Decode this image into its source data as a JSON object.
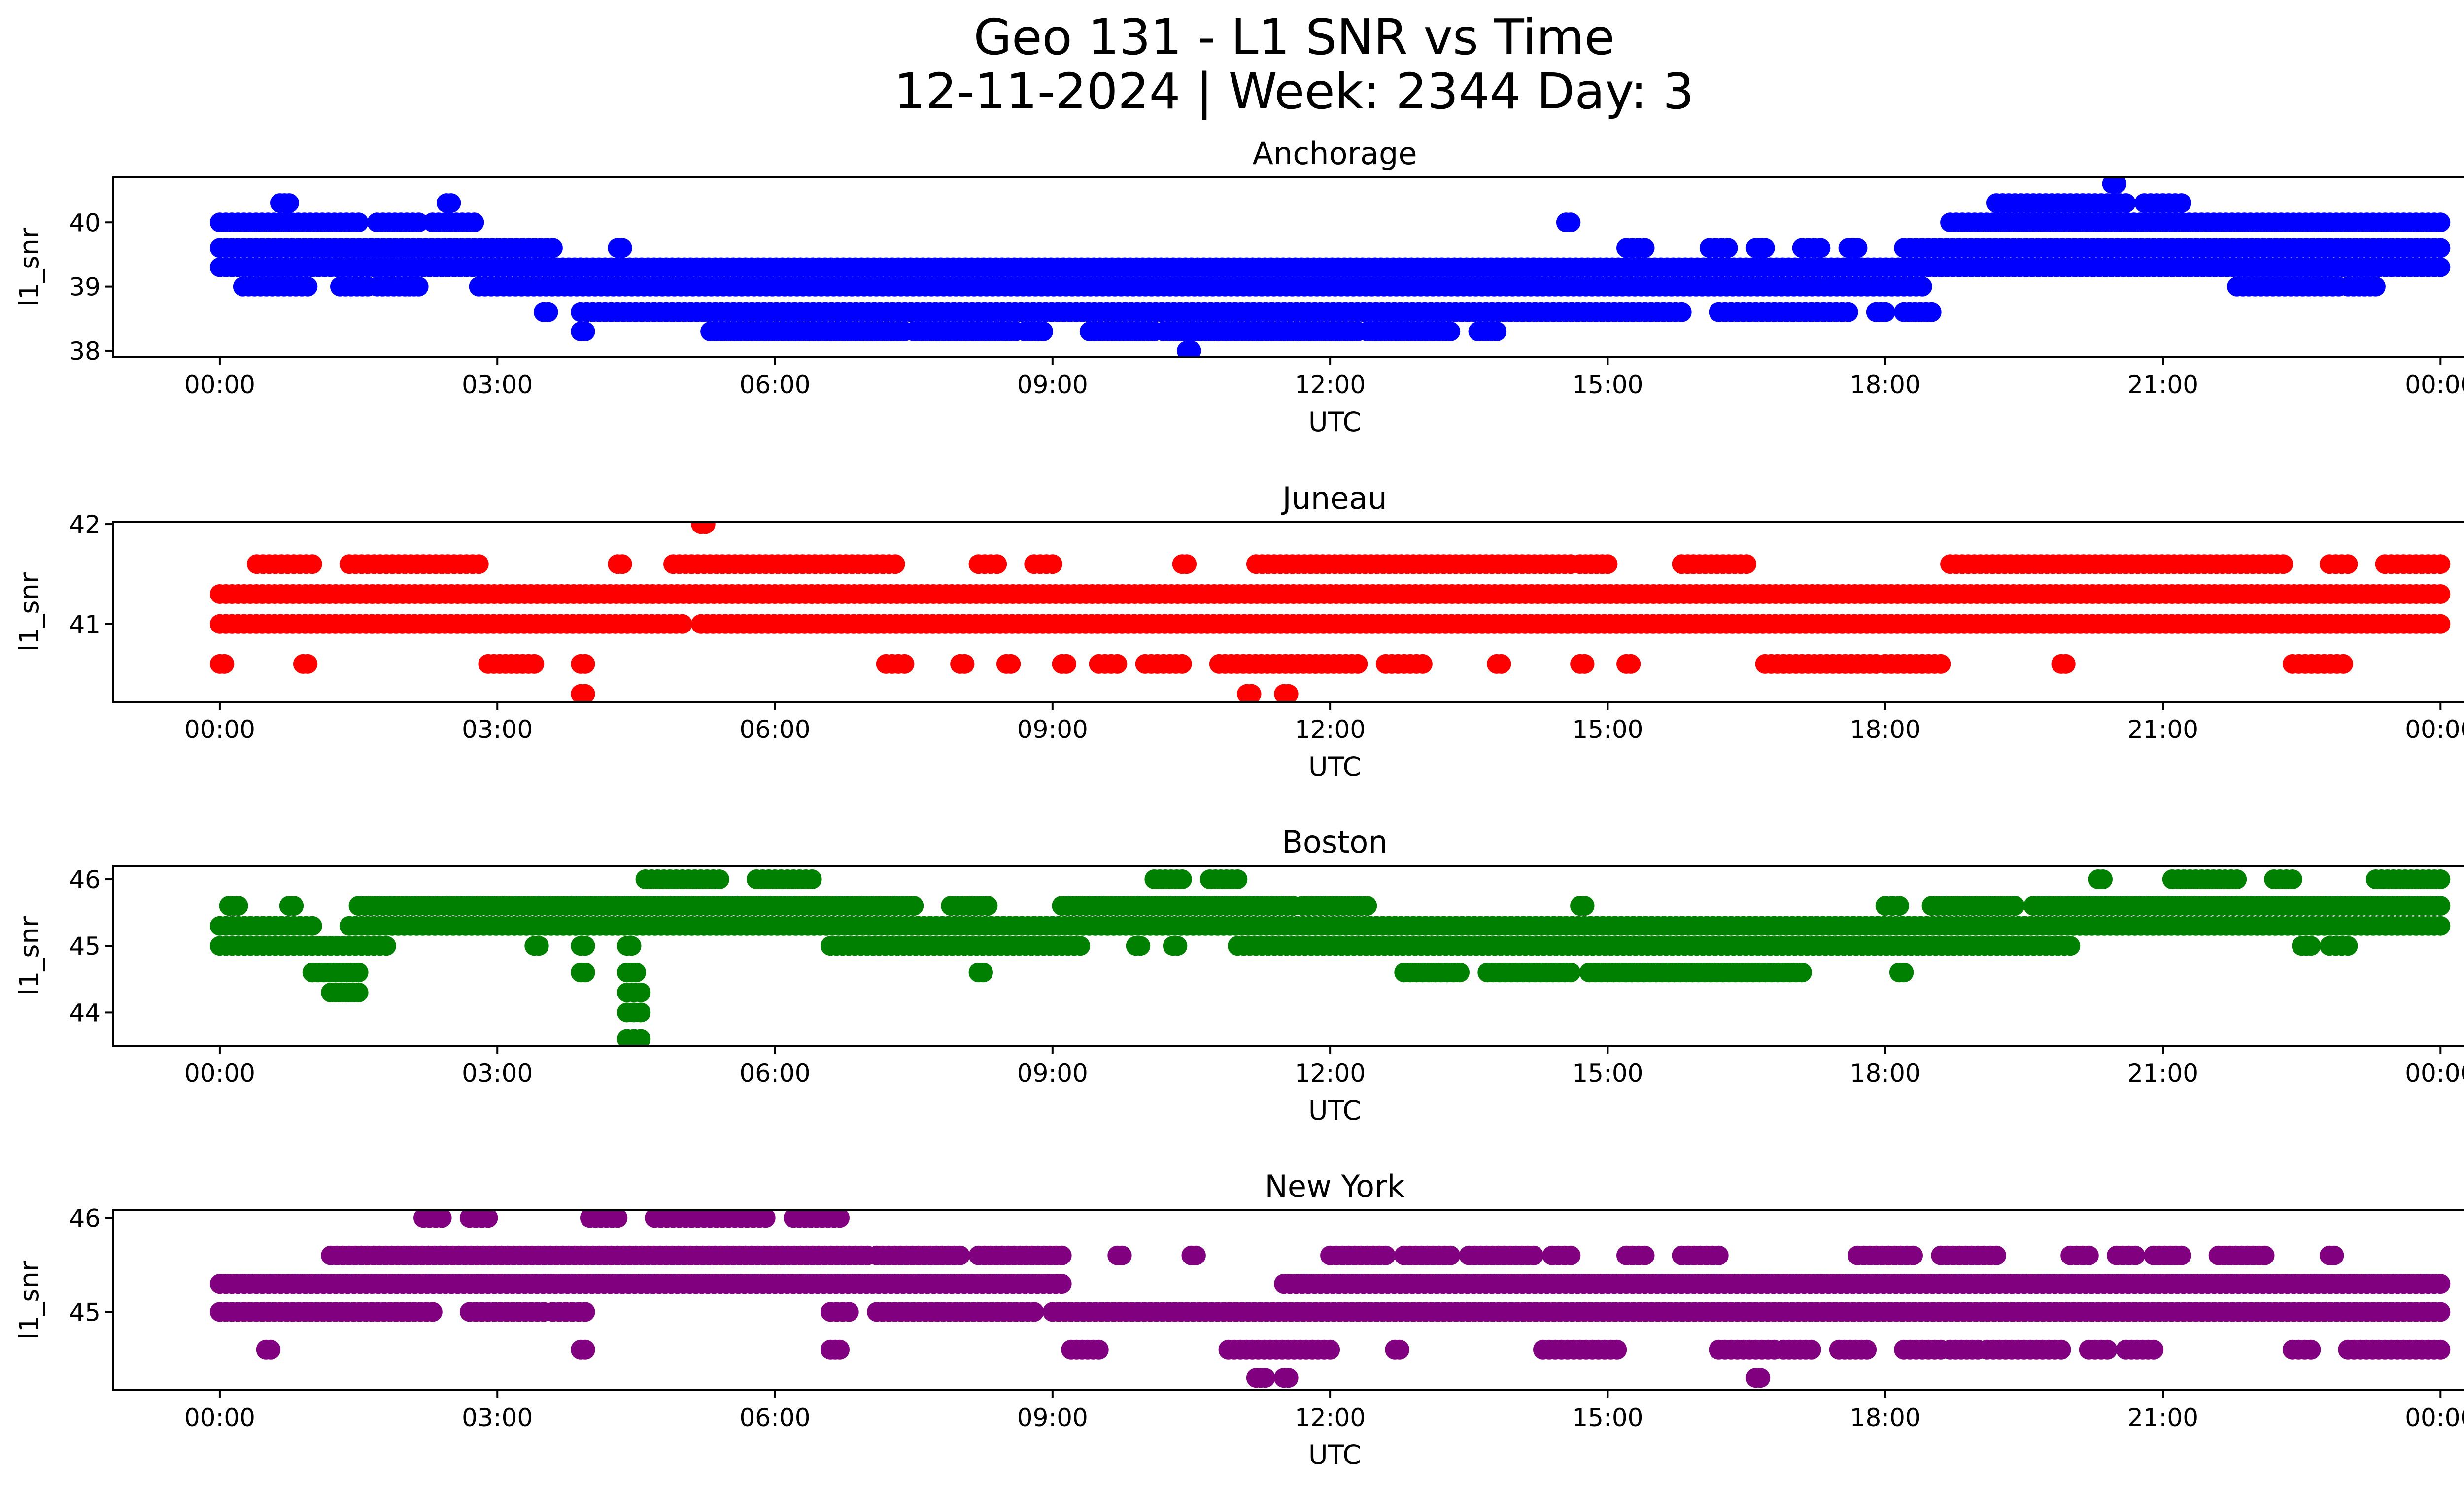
{
  "title": "Geo 131 - L1 SNR vs Time",
  "subtitle": "12-11-2024 | Week: 2344 Day: 3",
  "chart_data": [
    {
      "type": "scatter",
      "title": "Anchorage",
      "color": "#0000ff",
      "xlabel": "UTC",
      "ylabel": "l1_snr",
      "xlim": [
        -1.15,
        25.25
      ],
      "ylim": [
        37.9,
        40.7
      ],
      "xticks": [
        0,
        3,
        6,
        9,
        12,
        15,
        18,
        21,
        24
      ],
      "xtick_labels": [
        "00:00",
        "03:00",
        "06:00",
        "09:00",
        "12:00",
        "15:00",
        "18:00",
        "21:00",
        "00:00"
      ],
      "yticks": [
        38,
        39,
        40
      ],
      "ytick_labels": [
        "38",
        "39",
        "40"
      ],
      "bands": [
        {
          "y": 39.3,
          "segments": [
            [
              0,
              3.0
            ],
            [
              3.0,
              3.9
            ],
            [
              3.9,
              14.2
            ],
            [
              13.8,
              18.6
            ],
            [
              18.6,
              24
            ]
          ]
        },
        {
          "y": 39.6,
          "segments": [
            [
              0,
              3.6
            ],
            [
              4.3,
              4.35
            ],
            [
              15.2,
              15.4
            ],
            [
              16.1,
              16.3
            ],
            [
              16.6,
              16.7
            ],
            [
              17.1,
              17.3
            ],
            [
              17.6,
              17.7
            ],
            [
              18.2,
              24
            ]
          ]
        },
        {
          "y": 39.0,
          "segments": [
            [
              0.25,
              0.95
            ],
            [
              1.3,
              1.6
            ],
            [
              1.7,
              2.0
            ],
            [
              2.05,
              2.15
            ],
            [
              2.8,
              18.4
            ],
            [
              21.8,
              22.9
            ],
            [
              23.0,
              23.3
            ]
          ]
        },
        {
          "y": 40.0,
          "segments": [
            [
              0,
              1.5
            ],
            [
              1.7,
              2.15
            ],
            [
              2.3,
              2.75
            ],
            [
              14.55,
              14.6
            ],
            [
              18.7,
              24
            ]
          ]
        },
        {
          "y": 38.6,
          "segments": [
            [
              3.5,
              3.55
            ],
            [
              3.9,
              15.8
            ],
            [
              16.2,
              17.6
            ],
            [
              17.9,
              18.0
            ],
            [
              18.2,
              18.5
            ]
          ]
        },
        {
          "y": 38.3,
          "segments": [
            [
              3.9,
              3.95
            ],
            [
              5.3,
              7.4
            ],
            [
              7.5,
              8.6
            ],
            [
              8.7,
              8.9
            ],
            [
              9.4,
              10.1
            ],
            [
              10.2,
              12.3
            ],
            [
              12.4,
              13.3
            ],
            [
              13.6,
              13.8
            ]
          ]
        },
        {
          "y": 40.3,
          "segments": [
            [
              0.65,
              0.75
            ],
            [
              2.45,
              2.5
            ],
            [
              19.2,
              20.6
            ],
            [
              20.8,
              21.2
            ]
          ]
        },
        {
          "y": 38.0,
          "segments": [
            [
              10.45,
              10.5
            ]
          ]
        },
        {
          "y": 40.6,
          "segments": [
            [
              20.45,
              20.5
            ]
          ]
        }
      ]
    },
    {
      "type": "scatter",
      "title": "Juneau",
      "color": "#ff0000",
      "xlabel": "UTC",
      "ylabel": "l1_snr",
      "xlim": [
        -1.15,
        25.25
      ],
      "ylim": [
        40.22,
        42.02
      ],
      "xticks": [
        0,
        3,
        6,
        9,
        12,
        15,
        18,
        21,
        24
      ],
      "xtick_labels": [
        "00:00",
        "03:00",
        "06:00",
        "09:00",
        "12:00",
        "15:00",
        "18:00",
        "21:00",
        "00:00"
      ],
      "yticks": [
        41,
        42
      ],
      "ytick_labels": [
        "41",
        "42"
      ],
      "bands": [
        {
          "y": 41.3,
          "segments": [
            [
              0,
              24
            ]
          ]
        },
        {
          "y": 41.0,
          "segments": [
            [
              0,
              5.0
            ],
            [
              5.2,
              24
            ]
          ]
        },
        {
          "y": 41.6,
          "segments": [
            [
              0.4,
              1.0
            ],
            [
              1.4,
              2.8
            ],
            [
              4.3,
              4.35
            ],
            [
              4.9,
              7.3
            ],
            [
              8.2,
              8.4
            ],
            [
              8.8,
              9.0
            ],
            [
              10.4,
              10.45
            ],
            [
              11.2,
              14.6
            ],
            [
              14.7,
              15.0
            ],
            [
              15.8,
              16.5
            ],
            [
              18.7,
              22.3
            ],
            [
              22.8,
              23.0
            ],
            [
              23.4,
              24
            ]
          ]
        },
        {
          "y": 40.6,
          "segments": [
            [
              0,
              0.05
            ],
            [
              0.9,
              0.95
            ],
            [
              2.9,
              3.4
            ],
            [
              3.9,
              3.95
            ],
            [
              7.2,
              7.4
            ],
            [
              8.0,
              8.05
            ],
            [
              8.5,
              8.55
            ],
            [
              9.1,
              9.15
            ],
            [
              9.5,
              9.7
            ],
            [
              10.0,
              10.4
            ],
            [
              10.8,
              12.3
            ],
            [
              12.6,
              13.0
            ],
            [
              13.8,
              13.85
            ],
            [
              14.7,
              14.75
            ],
            [
              15.2,
              15.25
            ],
            [
              16.7,
              17.9
            ],
            [
              18.0,
              18.6
            ],
            [
              19.9,
              19.95
            ],
            [
              22.4,
              22.95
            ]
          ]
        },
        {
          "y": 40.3,
          "segments": [
            [
              3.9,
              3.95
            ],
            [
              11.1,
              11.15
            ],
            [
              11.5,
              11.55
            ]
          ]
        },
        {
          "y": 42.0,
          "segments": [
            [
              5.2,
              5.25
            ]
          ]
        }
      ]
    },
    {
      "type": "scatter",
      "title": "Boston",
      "color": "#008000",
      "xlabel": "UTC",
      "ylabel": "l1_snr",
      "xlim": [
        -1.15,
        25.25
      ],
      "ylim": [
        43.5,
        46.2
      ],
      "xticks": [
        0,
        3,
        6,
        9,
        12,
        15,
        18,
        21,
        24
      ],
      "xtick_labels": [
        "00:00",
        "03:00",
        "06:00",
        "09:00",
        "12:00",
        "15:00",
        "18:00",
        "21:00",
        "00:00"
      ],
      "yticks": [
        44,
        45,
        46
      ],
      "ytick_labels": [
        "44",
        "45",
        "46"
      ],
      "bands": [
        {
          "y": 45.3,
          "segments": [
            [
              0,
              0.6
            ],
            [
              0.6,
              1.0
            ],
            [
              1.4,
              24
            ]
          ]
        },
        {
          "y": 45.6,
          "segments": [
            [
              0.1,
              0.2
            ],
            [
              0.75,
              0.8
            ],
            [
              1.5,
              7.5
            ],
            [
              7.9,
              8.3
            ],
            [
              9.1,
              11.6
            ],
            [
              11.7,
              12.4
            ],
            [
              14.7,
              14.75
            ],
            [
              18.0,
              18.15
            ],
            [
              18.5,
              19.4
            ],
            [
              19.6,
              24
            ]
          ]
        },
        {
          "y": 45.0,
          "segments": [
            [
              0,
              1.8
            ],
            [
              3.4,
              3.45
            ],
            [
              3.9,
              3.95
            ],
            [
              4.4,
              4.45
            ],
            [
              6.6,
              9.3
            ],
            [
              9.9,
              9.95
            ],
            [
              10.3,
              10.35
            ],
            [
              11.0,
              20.0
            ],
            [
              22.5,
              22.6
            ],
            [
              22.8,
              23.0
            ]
          ]
        },
        {
          "y": 44.6,
          "segments": [
            [
              1.0,
              1.5
            ],
            [
              3.9,
              3.95
            ],
            [
              4.4,
              4.5
            ],
            [
              8.2,
              8.25
            ],
            [
              12.8,
              13.4
            ],
            [
              13.7,
              14.6
            ],
            [
              14.8,
              17.1
            ],
            [
              18.15,
              18.2
            ]
          ]
        },
        {
          "y": 46.0,
          "segments": [
            [
              4.6,
              5.4
            ],
            [
              5.8,
              6.4
            ],
            [
              10.1,
              10.4
            ],
            [
              10.7,
              11.0
            ],
            [
              20.3,
              20.35
            ],
            [
              21.1,
              21.8
            ],
            [
              22.2,
              22.4
            ],
            [
              23.3,
              24
            ]
          ]
        },
        {
          "y": 44.3,
          "segments": [
            [
              1.2,
              1.5
            ],
            [
              4.4,
              4.55
            ]
          ]
        },
        {
          "y": 44.0,
          "segments": [
            [
              4.4,
              4.55
            ]
          ]
        },
        {
          "y": 43.6,
          "segments": [
            [
              4.4,
              4.55
            ]
          ]
        }
      ]
    },
    {
      "type": "scatter",
      "title": "New York",
      "color": "#800080",
      "xlabel": "UTC",
      "ylabel": "l1_snr",
      "xlim": [
        -1.15,
        25.25
      ],
      "ylim": [
        44.17,
        46.08
      ],
      "xticks": [
        0,
        3,
        6,
        9,
        12,
        15,
        18,
        21,
        24
      ],
      "xtick_labels": [
        "00:00",
        "03:00",
        "06:00",
        "09:00",
        "12:00",
        "15:00",
        "18:00",
        "21:00",
        "00:00"
      ],
      "yticks": [
        45,
        46
      ],
      "ytick_labels": [
        "45",
        "46"
      ],
      "bands": [
        {
          "y": 45.3,
          "segments": [
            [
              0,
              9.1
            ],
            [
              11.5,
              24
            ]
          ]
        },
        {
          "y": 45.0,
          "segments": [
            [
              0,
              2.3
            ],
            [
              2.7,
              3.5
            ],
            [
              3.6,
              3.95
            ],
            [
              6.6,
              6.8
            ],
            [
              7.1,
              8.8
            ],
            [
              9.0,
              24
            ]
          ]
        },
        {
          "y": 45.6,
          "segments": [
            [
              1.2,
              7.0
            ],
            [
              7.1,
              8.0
            ],
            [
              8.2,
              9.1
            ],
            [
              9.7,
              9.75
            ],
            [
              10.5,
              10.55
            ],
            [
              12.0,
              12.6
            ],
            [
              12.8,
              13.3
            ],
            [
              13.5,
              14.2
            ],
            [
              14.4,
              14.6
            ],
            [
              15.2,
              15.4
            ],
            [
              15.8,
              16.2
            ],
            [
              17.7,
              18.3
            ],
            [
              18.6,
              19.2
            ],
            [
              20.0,
              20.2
            ],
            [
              20.5,
              20.7
            ],
            [
              20.9,
              21.2
            ],
            [
              21.6,
              22.1
            ],
            [
              22.8,
              22.85
            ]
          ]
        },
        {
          "y": 46.0,
          "segments": [
            [
              2.2,
              2.4
            ],
            [
              2.7,
              2.9
            ],
            [
              4.0,
              4.3
            ],
            [
              4.7,
              5.9
            ],
            [
              6.2,
              6.7
            ]
          ]
        },
        {
          "y": 44.6,
          "segments": [
            [
              0.5,
              0.55
            ],
            [
              3.9,
              3.95
            ],
            [
              6.6,
              6.7
            ],
            [
              9.2,
              9.5
            ],
            [
              10.9,
              12.0
            ],
            [
              12.7,
              12.75
            ],
            [
              14.3,
              15.1
            ],
            [
              16.2,
              16.8
            ],
            [
              16.9,
              17.2
            ],
            [
              17.5,
              17.8
            ],
            [
              18.2,
              18.6
            ],
            [
              18.7,
              19.0
            ],
            [
              19.1,
              19.9
            ],
            [
              20.2,
              20.4
            ],
            [
              20.6,
              20.9
            ],
            [
              22.4,
              22.6
            ],
            [
              23.0,
              24
            ]
          ]
        },
        {
          "y": 44.3,
          "segments": [
            [
              11.2,
              11.3
            ],
            [
              11.5,
              11.55
            ],
            [
              16.6,
              16.65
            ]
          ]
        }
      ]
    }
  ]
}
